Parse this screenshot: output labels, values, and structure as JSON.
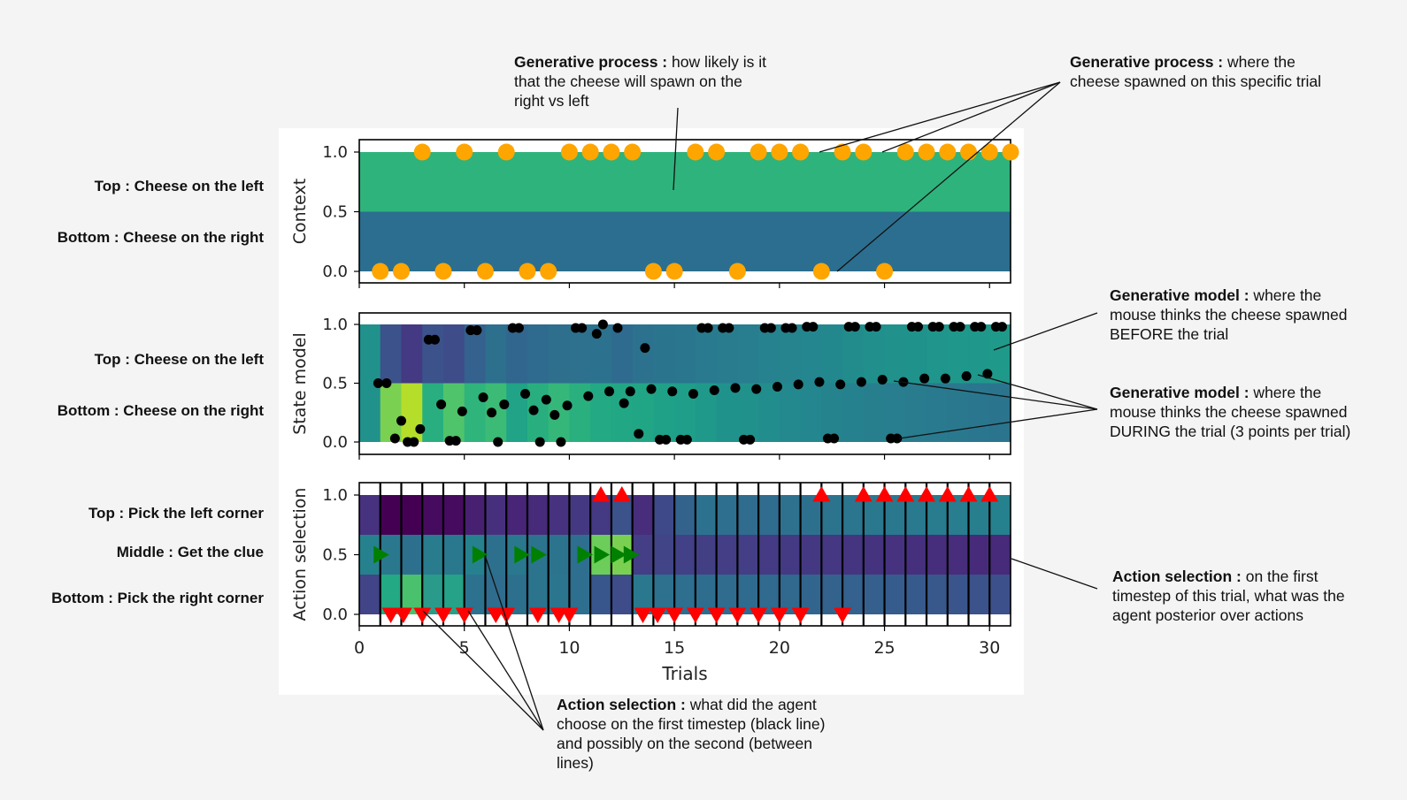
{
  "chart_data": {
    "type": "heatmap",
    "x_axis": {
      "label": "Trials",
      "ticks": [
        0,
        5,
        10,
        15,
        20,
        25,
        30
      ],
      "lim": [
        0,
        31
      ]
    },
    "y_ticks": [
      "0.0",
      "0.5",
      "1.0"
    ],
    "panels": [
      {
        "ylabel": "Context",
        "rows": [
          {
            "label": "Top : Cheese on the left",
            "y": 0.75,
            "color": "#2eb37c"
          },
          {
            "label": "Bottom : Cheese on the right",
            "y": 0.25,
            "color": "#2c6e8f"
          }
        ],
        "spawn_points": {
          "marker": "orange circle",
          "color": "#ffa500",
          "y1": [
            3,
            5,
            7,
            10,
            11,
            12,
            13,
            16,
            17,
            19,
            20,
            21,
            23,
            24,
            26,
            27,
            28,
            29,
            30,
            31
          ],
          "y0": [
            1,
            2,
            4,
            6,
            8,
            9,
            14,
            15,
            18,
            22,
            25
          ]
        }
      },
      {
        "ylabel": "State model",
        "rows": [
          {
            "label": "Top : Cheese on the left",
            "y": 0.75
          },
          {
            "label": "Bottom : Cheese on the right",
            "y": 0.25
          }
        ],
        "heat_top": [
          "#21918c",
          "#3b528b",
          "#443983",
          "#3b528b",
          "#3e4c8a",
          "#34618d",
          "#2d708e",
          "#31668e",
          "#2f6b8e",
          "#2e6f8e",
          "#2d718e",
          "#2c728e",
          "#2f6b8e",
          "#2c728e",
          "#2b748e",
          "#2a768e",
          "#297a8e",
          "#287c8e",
          "#287d8e",
          "#26828e",
          "#25848e",
          "#24868e",
          "#23888e",
          "#228c8d",
          "#21908d",
          "#21918c",
          "#20928c",
          "#1f958b",
          "#1f978b",
          "#1f988b",
          "#1f9a8a"
        ],
        "heat_bottom": [
          "#21918c",
          "#7ad151",
          "#b5de2b",
          "#29af7f",
          "#50c46a",
          "#2fb47c",
          "#3bbb75",
          "#20a386",
          "#29af7f",
          "#35b779",
          "#2ab07f",
          "#23a983",
          "#22a785",
          "#21a685",
          "#1fa188",
          "#1f9e89",
          "#1f9a8a",
          "#20928c",
          "#21918c",
          "#228d8d",
          "#23898e",
          "#24868e",
          "#25838e",
          "#26818e",
          "#277f8e",
          "#287d8e",
          "#287c8e",
          "#297a8e",
          "#2a788e",
          "#2a768e",
          "#2b748e"
        ],
        "belief_points": {
          "marker": "black circle",
          "color": "#000000",
          "points": [
            [
              0.9,
              0.5
            ],
            [
              1.3,
              0.5
            ],
            [
              1.7,
              0.03
            ],
            [
              2.0,
              0.18
            ],
            [
              2.3,
              0.0
            ],
            [
              2.6,
              0.0
            ],
            [
              2.9,
              0.11
            ],
            [
              3.3,
              0.87
            ],
            [
              3.6,
              0.87
            ],
            [
              3.9,
              0.32
            ],
            [
              4.3,
              0.01
            ],
            [
              4.6,
              0.01
            ],
            [
              4.9,
              0.26
            ],
            [
              5.3,
              0.95
            ],
            [
              5.6,
              0.95
            ],
            [
              5.9,
              0.38
            ],
            [
              6.3,
              0.25
            ],
            [
              6.6,
              0.0
            ],
            [
              6.9,
              0.32
            ],
            [
              7.3,
              0.97
            ],
            [
              7.6,
              0.97
            ],
            [
              7.9,
              0.41
            ],
            [
              8.3,
              0.27
            ],
            [
              8.6,
              0.0
            ],
            [
              8.9,
              0.36
            ],
            [
              9.3,
              0.23
            ],
            [
              9.6,
              0.0
            ],
            [
              9.9,
              0.31
            ],
            [
              10.3,
              0.97
            ],
            [
              10.6,
              0.97
            ],
            [
              10.9,
              0.39
            ],
            [
              11.3,
              0.92
            ],
            [
              11.6,
              1.0
            ],
            [
              11.9,
              0.43
            ],
            [
              12.3,
              0.97
            ],
            [
              12.6,
              0.33
            ],
            [
              12.9,
              0.43
            ],
            [
              13.3,
              0.07
            ],
            [
              13.6,
              0.8
            ],
            [
              13.9,
              0.45
            ],
            [
              14.3,
              0.02
            ],
            [
              14.6,
              0.02
            ],
            [
              14.9,
              0.43
            ],
            [
              15.3,
              0.02
            ],
            [
              15.6,
              0.02
            ],
            [
              15.9,
              0.41
            ],
            [
              16.3,
              0.97
            ],
            [
              16.6,
              0.97
            ],
            [
              16.9,
              0.44
            ],
            [
              17.3,
              0.97
            ],
            [
              17.6,
              0.97
            ],
            [
              17.9,
              0.46
            ],
            [
              18.3,
              0.02
            ],
            [
              18.6,
              0.02
            ],
            [
              18.9,
              0.45
            ],
            [
              19.3,
              0.97
            ],
            [
              19.6,
              0.97
            ],
            [
              19.9,
              0.47
            ],
            [
              20.3,
              0.97
            ],
            [
              20.6,
              0.97
            ],
            [
              20.9,
              0.49
            ],
            [
              21.3,
              0.98
            ],
            [
              21.6,
              0.98
            ],
            [
              21.9,
              0.51
            ],
            [
              22.3,
              0.03
            ],
            [
              22.6,
              0.03
            ],
            [
              22.9,
              0.49
            ],
            [
              23.3,
              0.98
            ],
            [
              23.6,
              0.98
            ],
            [
              23.9,
              0.51
            ],
            [
              24.3,
              0.98
            ],
            [
              24.6,
              0.98
            ],
            [
              24.9,
              0.53
            ],
            [
              25.3,
              0.03
            ],
            [
              25.6,
              0.03
            ],
            [
              25.9,
              0.51
            ],
            [
              26.3,
              0.98
            ],
            [
              26.6,
              0.98
            ],
            [
              26.9,
              0.54
            ],
            [
              27.3,
              0.98
            ],
            [
              27.6,
              0.98
            ],
            [
              27.9,
              0.54
            ],
            [
              28.3,
              0.98
            ],
            [
              28.6,
              0.98
            ],
            [
              28.9,
              0.56
            ],
            [
              29.3,
              0.98
            ],
            [
              29.6,
              0.98
            ],
            [
              29.9,
              0.58
            ],
            [
              30.3,
              0.98
            ],
            [
              30.6,
              0.98
            ]
          ]
        }
      },
      {
        "ylabel": "Action selection",
        "rows": [
          {
            "label": "Top : Pick the left corner",
            "y": 0.83
          },
          {
            "label": "Middle : Get the clue",
            "y": 0.5
          },
          {
            "label": "Bottom : Pick the right corner",
            "y": 0.17
          }
        ],
        "heat_top": [
          "#46327e",
          "#440154",
          "#440154",
          "#460b5e",
          "#460b5e",
          "#482071",
          "#46307e",
          "#482576",
          "#472a7a",
          "#46327e",
          "#453882",
          "#443983",
          "#3b528b",
          "#472d7b",
          "#3e4989",
          "#33638d",
          "#2c728e",
          "#2e6e8e",
          "#2f6c8e",
          "#2f6c8e",
          "#2d718e",
          "#2d708e",
          "#2c738e",
          "#2b758e",
          "#2a788e",
          "#2a788e",
          "#297a8e",
          "#287c8e",
          "#287d8e",
          "#277f8e",
          "#26818e"
        ],
        "heat_mid": [
          "#26818e",
          "#2a788e",
          "#2d708e",
          "#287c8e",
          "#2a788e",
          "#26818e",
          "#2d708e",
          "#2a788e",
          "#2c738e",
          "#2c738e",
          "#2e6e8e",
          "#6ccd5a",
          "#7ad151",
          "#433e85",
          "#414487",
          "#424086",
          "#423f85",
          "#433e85",
          "#433e85",
          "#443b84",
          "#443983",
          "#453882",
          "#453781",
          "#453581",
          "#46337f",
          "#46327e",
          "#46307e",
          "#472e7c",
          "#472d7b",
          "#472b7a",
          "#472a7a"
        ],
        "heat_bottom": [
          "#414487",
          "#23a983",
          "#4ac16d",
          "#2a9b8a",
          "#25a287",
          "#2c728e",
          "#2f6c8e",
          "#2d708e",
          "#2c738e",
          "#2b758e",
          "#2e6e8e",
          "#39568c",
          "#3e4c8a",
          "#2a788e",
          "#2d718e",
          "#2e6e8e",
          "#2e6d8e",
          "#2f6c8e",
          "#2f6b8e",
          "#306a8e",
          "#31688e",
          "#32658e",
          "#33638d",
          "#34618d",
          "#355f8d",
          "#365c8d",
          "#375a8c",
          "#38588c",
          "#3a548c",
          "#3b528b",
          "#3c508b"
        ],
        "first_timestep_lines": [
          1,
          2,
          3,
          4,
          5,
          6,
          7,
          8,
          9,
          10,
          11,
          12,
          13,
          14,
          15,
          16,
          17,
          18,
          19,
          20,
          21,
          22,
          23,
          24,
          25,
          26,
          27,
          28,
          29,
          30
        ],
        "actions": {
          "left_up_triangles": {
            "color": "#ff0000",
            "x": [
              11.5,
              12.5,
              22,
              24,
              25,
              26,
              27,
              28,
              29,
              30
            ]
          },
          "clue_right_triangles": {
            "color": "#008000",
            "x": [
              1,
              5.7,
              7.7,
              8.5,
              10.7,
              11.5,
              12.3,
              12.9
            ]
          },
          "right_down_triangles": {
            "color": "#ff0000",
            "x": [
              1.5,
              2.1,
              3,
              4,
              5,
              6.5,
              7,
              8.5,
              9.5,
              10,
              13.5,
              14.2,
              15,
              16,
              17,
              18,
              19,
              20,
              21,
              23
            ]
          }
        }
      }
    ]
  },
  "callouts": {
    "gp_likely": {
      "title": "Generative process :",
      "text": " how likely is it that the cheese will spawn on the right vs left"
    },
    "gp_where": {
      "title": "Generative process :",
      "text": " where the cheese spawned on this specific trial"
    },
    "gm_before": {
      "title": "Generative model :",
      "text": " where the mouse thinks the cheese spawned BEFORE the trial"
    },
    "gm_during": {
      "title": "Generative model :",
      "text": " where the mouse thinks the cheese spawned DURING the trial (3 points per trial)"
    },
    "as_posterior": {
      "title": "Action selection :",
      "text": " on the first timestep of this trial, what was the agent posterior over actions"
    },
    "as_choose": {
      "title": "Action selection :",
      "text": " what did the agent choose on the first timestep (black line) and possibly on the second (between lines)"
    }
  }
}
